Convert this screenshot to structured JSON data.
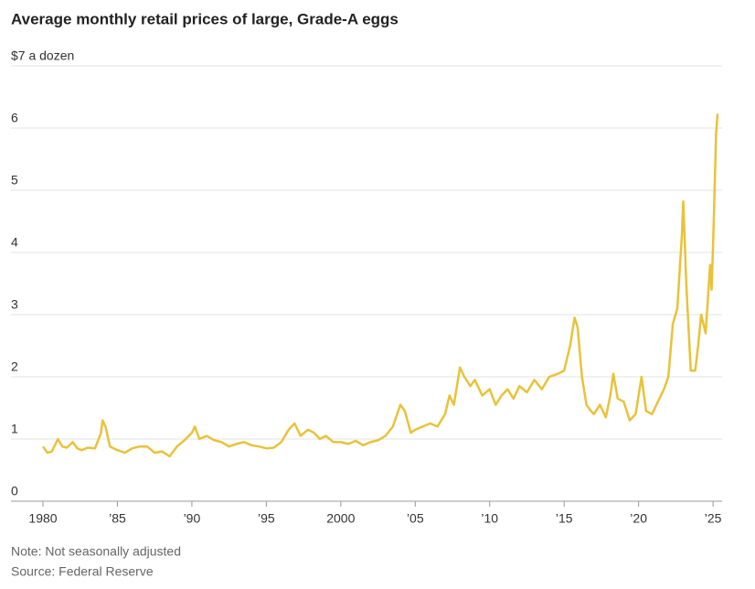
{
  "chart_data": {
    "type": "line",
    "title": "Average monthly retail prices of large, Grade-A eggs",
    "notes": [
      "Note: Not seasonally adjusted",
      "Source: Federal Reserve"
    ],
    "x": [
      1980.0,
      1980.3,
      1980.6,
      1980.9,
      1981.0,
      1981.3,
      1981.6,
      1982.0,
      1982.3,
      1982.6,
      1983.0,
      1983.5,
      1983.9,
      1984.0,
      1984.2,
      1984.5,
      1985.0,
      1985.5,
      1986.0,
      1986.5,
      1987.0,
      1987.5,
      1988.0,
      1988.5,
      1989.0,
      1989.5,
      1990.0,
      1990.2,
      1990.5,
      1991.0,
      1991.5,
      1992.0,
      1992.5,
      1993.0,
      1993.5,
      1994.0,
      1994.5,
      1995.0,
      1995.5,
      1996.0,
      1996.5,
      1996.9,
      1997.3,
      1997.8,
      1998.2,
      1998.6,
      1999.0,
      1999.5,
      2000.0,
      2000.5,
      2001.0,
      2001.5,
      2002.0,
      2002.5,
      2003.0,
      2003.5,
      2004.0,
      2004.3,
      2004.7,
      2005.0,
      2005.5,
      2006.0,
      2006.5,
      2007.0,
      2007.3,
      2007.6,
      2008.0,
      2008.3,
      2008.7,
      2009.0,
      2009.5,
      2010.0,
      2010.4,
      2010.8,
      2011.2,
      2011.6,
      2012.0,
      2012.5,
      2013.0,
      2013.5,
      2014.0,
      2014.6,
      2015.0,
      2015.4,
      2015.7,
      2015.9,
      2016.2,
      2016.5,
      2016.8,
      2017.0,
      2017.4,
      2017.8,
      2018.1,
      2018.3,
      2018.6,
      2019.0,
      2019.4,
      2019.8,
      2020.2,
      2020.5,
      2020.9,
      2021.3,
      2021.7,
      2022.0,
      2022.3,
      2022.6,
      2022.9,
      2023.0,
      2023.2,
      2023.5,
      2023.8,
      2024.0,
      2024.2,
      2024.5,
      2024.8,
      2024.9,
      2025.0,
      2025.1,
      2025.2,
      2025.3
    ],
    "series": [
      {
        "name": "Price",
        "color": "#e9c23a",
        "values": [
          0.88,
          0.78,
          0.8,
          0.95,
          1.0,
          0.88,
          0.86,
          0.95,
          0.85,
          0.82,
          0.86,
          0.85,
          1.1,
          1.3,
          1.2,
          0.88,
          0.82,
          0.78,
          0.85,
          0.88,
          0.88,
          0.78,
          0.8,
          0.72,
          0.88,
          0.98,
          1.1,
          1.2,
          1.0,
          1.05,
          0.98,
          0.95,
          0.88,
          0.92,
          0.95,
          0.9,
          0.88,
          0.85,
          0.86,
          0.95,
          1.15,
          1.25,
          1.05,
          1.15,
          1.1,
          1.0,
          1.05,
          0.95,
          0.95,
          0.92,
          0.97,
          0.9,
          0.95,
          0.98,
          1.05,
          1.2,
          1.55,
          1.45,
          1.1,
          1.15,
          1.2,
          1.25,
          1.2,
          1.4,
          1.7,
          1.55,
          2.15,
          2.0,
          1.85,
          1.95,
          1.7,
          1.8,
          1.55,
          1.7,
          1.8,
          1.65,
          1.85,
          1.75,
          1.95,
          1.8,
          2.0,
          2.05,
          2.1,
          2.5,
          2.95,
          2.8,
          2.0,
          1.55,
          1.45,
          1.4,
          1.55,
          1.35,
          1.7,
          2.05,
          1.65,
          1.6,
          1.3,
          1.4,
          2.0,
          1.45,
          1.4,
          1.6,
          1.8,
          2.0,
          2.85,
          3.1,
          4.25,
          4.82,
          3.5,
          2.1,
          2.1,
          2.5,
          3.0,
          2.7,
          3.8,
          3.4,
          4.1,
          4.95,
          5.9,
          6.23
        ]
      }
    ],
    "xlim": [
      1980,
      2025.3
    ],
    "xticks": [
      1980,
      {
        "value": 1985,
        "label": "’85"
      },
      {
        "value": 1990,
        "label": "’90"
      },
      {
        "value": 1995,
        "label": "’95"
      },
      2000,
      {
        "value": 2005,
        "label": "’05"
      },
      {
        "value": 2010,
        "label": "’10"
      },
      {
        "value": 2015,
        "label": "’15"
      },
      {
        "value": 2020,
        "label": "’20"
      },
      {
        "value": 2025,
        "label": "’25"
      }
    ],
    "ylim": [
      0,
      7
    ],
    "yticks": [
      0,
      1,
      2,
      3,
      4,
      5,
      6,
      {
        "value": 7,
        "label": "$7 a dozen"
      }
    ],
    "grid": true
  }
}
